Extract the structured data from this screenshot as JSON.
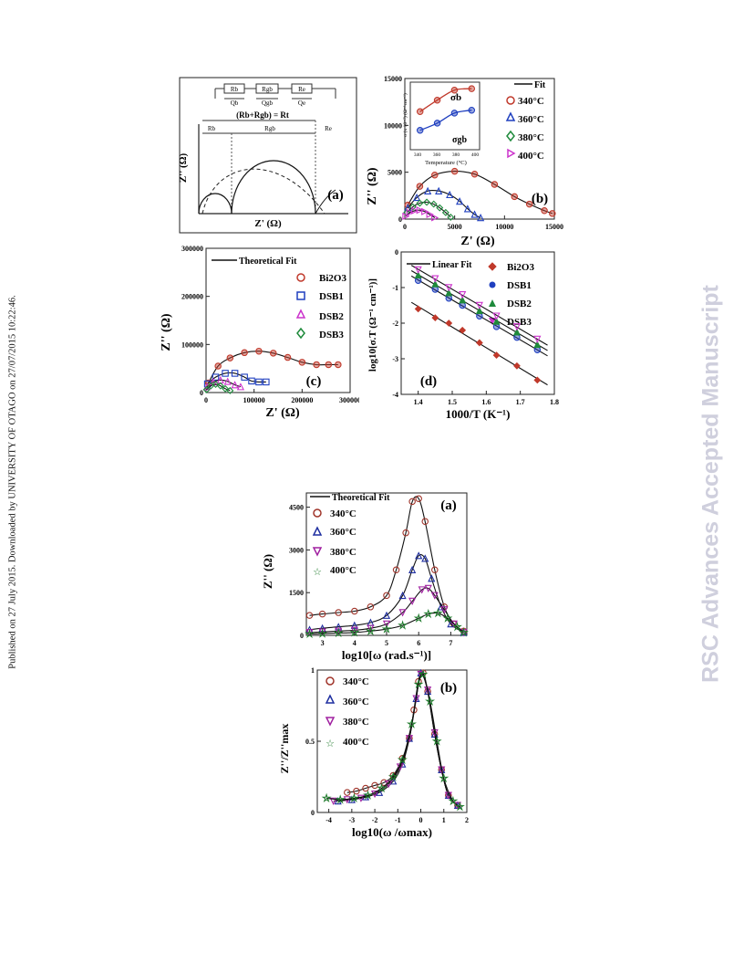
{
  "page": {
    "published_note": "Published on 27 July 2015. Downloaded by UNIVERSITY OF OTAGO on 27/07/2015 10:22:46.",
    "watermark": "RSC Advances Accepted Manuscript"
  },
  "figure1": {
    "a": {
      "tag": "(a)",
      "circuit_labels": [
        "Rb",
        "Rgb",
        "Re",
        "Qb",
        "Qgb",
        "Qe"
      ],
      "sum_label": "(Rb+Rgb) = Rt",
      "segment_labels": [
        "Rb",
        "Rgb",
        "Re"
      ],
      "xlabel": "Z' (Ω)",
      "ylabel": "Z'' (Ω)"
    },
    "b": {
      "tag": "(b)",
      "xlabel": "Z' (Ω)",
      "ylabel": "Z'' (Ω)",
      "legend": [
        "Fit",
        "340°C",
        "360°C",
        "380°C",
        "400°C"
      ],
      "inset": {
        "xlabel": "Temperature (°C)",
        "ylabel": "σ (x 10⁻⁷) (Ω⁻¹cm⁻¹)",
        "labels": [
          "σb",
          "σgb"
        ],
        "xticks": [
          "340",
          "360",
          "380",
          "400"
        ],
        "yticks": [
          "4",
          "3",
          "2",
          "1"
        ]
      }
    },
    "c": {
      "tag": "(c)",
      "xlabel": "Z' (Ω)",
      "ylabel": "Z'' (Ω)",
      "legend": [
        "Theoretical Fit",
        "Bi2O3",
        "DSB1",
        "DSB2",
        "DSB3"
      ]
    },
    "d": {
      "tag": "(d)",
      "xlabel": "1000/T (K⁻¹)",
      "ylabel": "log10[σ.T (Ω⁻¹ cm⁻¹)]",
      "legend": [
        "Linear Fit",
        "Bi2O3",
        "DSB1",
        "DSB2",
        "DSB3"
      ]
    }
  },
  "figure2": {
    "a": {
      "tag": "(a)",
      "xlabel": "log10[ω (rad.s⁻¹)]",
      "ylabel": "Z'' (Ω)",
      "legend": [
        "Theoretical Fit",
        "340°C",
        "360°C",
        "380°C",
        "400°C"
      ]
    },
    "b": {
      "tag": "(b)",
      "xlabel": "log10(ω /ωmax)",
      "ylabel": "Z''/Z''max",
      "legend": [
        "340°C",
        "360°C",
        "380°C",
        "400°C"
      ]
    }
  },
  "chart_data": [
    {
      "id": "fig1b",
      "type": "scatter",
      "title": "",
      "xlabel": "Z' (Ω)",
      "ylabel": "Z'' (Ω)",
      "xlim": [
        0,
        15000
      ],
      "ylim": [
        0,
        15000
      ],
      "xticks": [
        0,
        5000,
        10000,
        15000
      ],
      "yticks": [
        0,
        5000,
        10000,
        15000
      ],
      "series": [
        {
          "name": "340°C",
          "color": "#c0392b",
          "marker": "half-circle",
          "x": [
            300,
            1500,
            3000,
            5000,
            7000,
            9000,
            11000,
            12500,
            14000,
            14800
          ],
          "y": [
            1500,
            3500,
            4700,
            5100,
            4800,
            3700,
            2400,
            1600,
            900,
            600
          ]
        },
        {
          "name": "360°C",
          "color": "#1f3fbf",
          "marker": "triangle",
          "x": [
            300,
            1200,
            2300,
            3400,
            4500,
            5500,
            6300,
            7000,
            7600
          ],
          "y": [
            1200,
            2300,
            3000,
            3000,
            2600,
            1900,
            1100,
            500,
            150
          ]
        },
        {
          "name": "380°C",
          "color": "#1e8a3b",
          "marker": "diamond",
          "x": [
            200,
            800,
            1500,
            2200,
            2900,
            3500,
            4100,
            4600
          ],
          "y": [
            700,
            1300,
            1700,
            1800,
            1600,
            1200,
            700,
            200
          ]
        },
        {
          "name": "400°C",
          "color": "#cc33cc",
          "marker": "triangle-right",
          "x": [
            100,
            500,
            1000,
            1500,
            2000,
            2500,
            3000
          ],
          "y": [
            300,
            700,
            900,
            950,
            800,
            500,
            150
          ]
        }
      ],
      "inset": {
        "xlim": [
          335,
          405
        ],
        "ylim": [
          0,
          4.2
        ],
        "series": [
          {
            "name": "σb",
            "color": "#c0392b",
            "x": [
              340,
              360,
              380,
              400
            ],
            "y": [
              2.4,
              3.2,
              3.9,
              4.0
            ]
          },
          {
            "name": "σgb",
            "color": "#1f3fbf",
            "x": [
              340,
              360,
              380,
              400
            ],
            "y": [
              1.1,
              1.6,
              2.3,
              2.5
            ]
          }
        ]
      }
    },
    {
      "id": "fig1c",
      "type": "scatter",
      "title": "",
      "xlabel": "Z' (Ω)",
      "ylabel": "Z'' (Ω)",
      "xlim": [
        0,
        300000
      ],
      "ylim": [
        0,
        300000
      ],
      "xticks": [
        0,
        100000,
        200000,
        300000
      ],
      "yticks": [
        0,
        100000,
        200000,
        300000
      ],
      "series": [
        {
          "name": "Bi2O3",
          "color": "#c0392b",
          "marker": "half-circle",
          "x": [
            5000,
            25000,
            50000,
            80000,
            110000,
            140000,
            170000,
            200000,
            230000,
            255000,
            275000
          ],
          "y": [
            20000,
            55000,
            72000,
            83000,
            86000,
            82000,
            73000,
            63000,
            58000,
            58000,
            58000
          ]
        },
        {
          "name": "DSB1",
          "color": "#1f3fbf",
          "marker": "square",
          "x": [
            3000,
            20000,
            40000,
            60000,
            80000,
            95000,
            110000,
            125000
          ],
          "y": [
            18000,
            32000,
            40000,
            40000,
            32000,
            24000,
            22000,
            22000
          ]
        },
        {
          "name": "DSB2",
          "color": "#cc33cc",
          "marker": "triangle",
          "x": [
            2000,
            15000,
            30000,
            45000,
            60000,
            72000
          ],
          "y": [
            12000,
            22000,
            26000,
            23000,
            16000,
            12000
          ]
        },
        {
          "name": "DSB3",
          "color": "#1e8a3b",
          "marker": "diamond",
          "x": [
            1000,
            10000,
            20000,
            30000,
            40000,
            50000
          ],
          "y": [
            6000,
            14000,
            17000,
            14000,
            8000,
            4000
          ]
        }
      ]
    },
    {
      "id": "fig1d",
      "type": "scatter",
      "title": "",
      "xlabel": "1000/T (K⁻¹)",
      "ylabel": "log10[σ.T (Ω⁻¹ cm⁻¹)]",
      "xlim": [
        1.35,
        1.8
      ],
      "ylim": [
        -4,
        0
      ],
      "xticks": [
        1.4,
        1.5,
        1.6,
        1.7,
        1.8
      ],
      "yticks": [
        0,
        -1,
        -2,
        -3,
        -4
      ],
      "series": [
        {
          "name": "Bi2O3",
          "color": "#c0392b",
          "marker": "half-diamond",
          "x": [
            1.4,
            1.45,
            1.49,
            1.53,
            1.58,
            1.63,
            1.69,
            1.75
          ],
          "y": [
            -1.6,
            -1.85,
            -2.0,
            -2.2,
            -2.55,
            -2.9,
            -3.2,
            -3.6
          ]
        },
        {
          "name": "DSB1",
          "color": "#1f3fbf",
          "marker": "half-circle",
          "x": [
            1.4,
            1.45,
            1.49,
            1.53,
            1.58,
            1.63,
            1.69,
            1.75
          ],
          "y": [
            -0.8,
            -1.05,
            -1.3,
            -1.5,
            -1.8,
            -2.1,
            -2.4,
            -2.75
          ]
        },
        {
          "name": "DSB2",
          "color": "#1e8a3b",
          "marker": "half-triangle",
          "x": [
            1.4,
            1.45,
            1.49,
            1.53,
            1.58,
            1.63,
            1.69,
            1.75
          ],
          "y": [
            -0.65,
            -0.9,
            -1.15,
            -1.35,
            -1.65,
            -1.95,
            -2.25,
            -2.6
          ]
        },
        {
          "name": "DSB3",
          "color": "#cc33cc",
          "marker": "triangle-down",
          "x": [
            1.4,
            1.45,
            1.49,
            1.53,
            1.58,
            1.63,
            1.69,
            1.75
          ],
          "y": [
            -0.5,
            -0.75,
            -1.0,
            -1.2,
            -1.5,
            -1.8,
            -2.1,
            -2.45
          ]
        }
      ]
    },
    {
      "id": "fig2a",
      "type": "scatter",
      "title": "",
      "xlabel": "log10[ω (rad.s⁻¹)]",
      "ylabel": "Z'' (Ω)",
      "xlim": [
        2.5,
        7.5
      ],
      "ylim": [
        0,
        5000
      ],
      "xticks": [
        3,
        4,
        5,
        6,
        7
      ],
      "yticks": [
        0,
        1500,
        3000,
        4500
      ],
      "series": [
        {
          "name": "340°C",
          "color": "#a0342a",
          "marker": "circle",
          "x": [
            2.6,
            3.0,
            3.5,
            4.0,
            4.5,
            5.0,
            5.3,
            5.6,
            5.8,
            6.0,
            6.2,
            6.5,
            6.8,
            7.1,
            7.4
          ],
          "y": [
            700,
            750,
            800,
            850,
            1000,
            1400,
            2300,
            3600,
            4700,
            4800,
            4000,
            2300,
            1000,
            400,
            150
          ]
        },
        {
          "name": "360°C",
          "color": "#1f2fa0",
          "marker": "triangle",
          "x": [
            2.6,
            3.0,
            3.5,
            4.0,
            4.5,
            5.0,
            5.5,
            5.8,
            6.0,
            6.2,
            6.4,
            6.7,
            7.0,
            7.4
          ],
          "y": [
            200,
            250,
            300,
            350,
            450,
            700,
            1400,
            2300,
            2800,
            2700,
            2000,
            1000,
            400,
            100
          ]
        },
        {
          "name": "380°C",
          "color": "#a020a0",
          "marker": "triangle-down",
          "x": [
            2.6,
            3.0,
            3.5,
            4.0,
            4.5,
            5.0,
            5.5,
            5.8,
            6.1,
            6.3,
            6.5,
            6.8,
            7.1,
            7.4
          ],
          "y": [
            100,
            120,
            150,
            180,
            250,
            400,
            800,
            1200,
            1600,
            1650,
            1400,
            900,
            400,
            100
          ]
        },
        {
          "name": "400°C",
          "color": "#1e7a2b",
          "marker": "star",
          "x": [
            2.6,
            3.0,
            3.5,
            4.0,
            4.5,
            5.0,
            5.5,
            6.0,
            6.3,
            6.6,
            6.9,
            7.2,
            7.4
          ],
          "y": [
            50,
            60,
            80,
            100,
            150,
            220,
            350,
            600,
            750,
            780,
            600,
            300,
            100
          ]
        }
      ]
    },
    {
      "id": "fig2b",
      "type": "scatter",
      "title": "",
      "xlabel": "log10(ω /ωmax)",
      "ylabel": "Z''/Z''max",
      "xlim": [
        -4.5,
        2
      ],
      "ylim": [
        0,
        1
      ],
      "xticks": [
        -4,
        -3,
        -2,
        -1,
        0,
        1,
        2
      ],
      "yticks": [
        0.0,
        0.5,
        1.0
      ],
      "series": [
        {
          "name": "340°C",
          "color": "#a0342a",
          "marker": "circle",
          "x": [
            -3.2,
            -2.8,
            -2.4,
            -2.0,
            -1.6,
            -1.2,
            -0.8,
            -0.5,
            -0.3,
            -0.1,
            0.1,
            0.3,
            0.6,
            0.9,
            1.2,
            1.6
          ],
          "y": [
            0.14,
            0.15,
            0.17,
            0.19,
            0.21,
            0.26,
            0.38,
            0.52,
            0.72,
            0.92,
            0.98,
            0.85,
            0.55,
            0.3,
            0.12,
            0.05
          ]
        },
        {
          "name": "360°C",
          "color": "#1f2fa0",
          "marker": "triangle",
          "x": [
            -3.6,
            -3.0,
            -2.4,
            -1.8,
            -1.2,
            -0.8,
            -0.5,
            -0.2,
            0.0,
            0.3,
            0.6,
            0.9,
            1.2,
            1.6
          ],
          "y": [
            0.08,
            0.09,
            0.11,
            0.14,
            0.22,
            0.34,
            0.52,
            0.8,
            0.98,
            0.85,
            0.55,
            0.3,
            0.12,
            0.05
          ]
        },
        {
          "name": "380°C",
          "color": "#a020a0",
          "marker": "triangle-down",
          "x": [
            -3.8,
            -3.2,
            -2.6,
            -2.0,
            -1.4,
            -0.9,
            -0.5,
            -0.2,
            0.0,
            0.3,
            0.6,
            0.9,
            1.2,
            1.6
          ],
          "y": [
            0.08,
            0.09,
            0.1,
            0.13,
            0.2,
            0.32,
            0.52,
            0.8,
            0.97,
            0.86,
            0.56,
            0.3,
            0.12,
            0.05
          ]
        },
        {
          "name": "400°C",
          "color": "#1e7a2b",
          "marker": "star",
          "x": [
            -4.1,
            -3.5,
            -2.9,
            -2.3,
            -1.7,
            -1.2,
            -0.8,
            -0.4,
            -0.1,
            0.1,
            0.4,
            0.7,
            1.0,
            1.4,
            1.7
          ],
          "y": [
            0.1,
            0.09,
            0.1,
            0.12,
            0.17,
            0.25,
            0.37,
            0.62,
            0.9,
            0.97,
            0.78,
            0.5,
            0.24,
            0.08,
            0.04
          ]
        }
      ]
    }
  ]
}
